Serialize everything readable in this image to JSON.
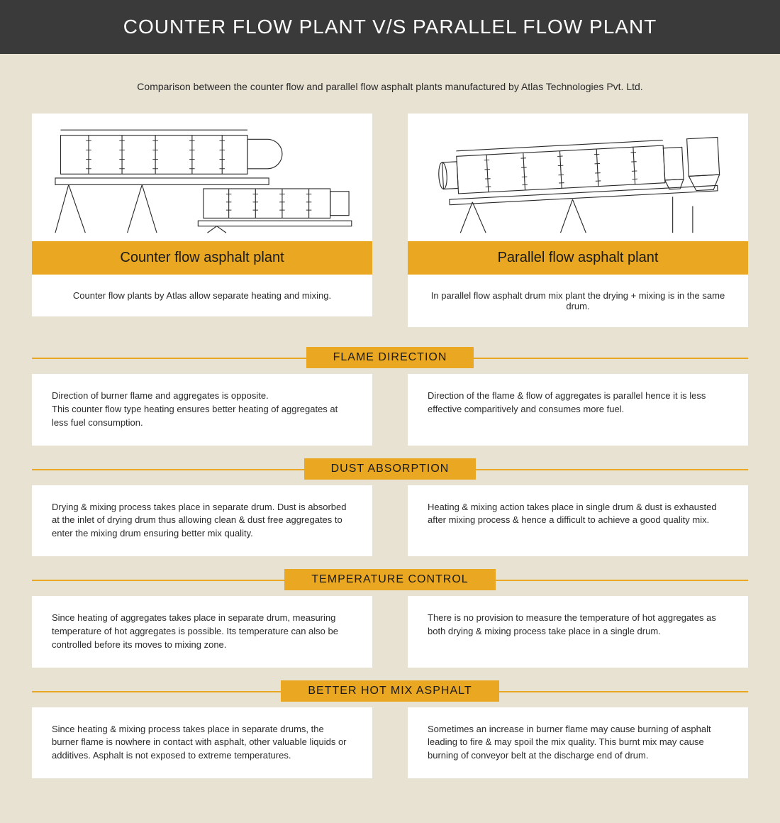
{
  "header_title": "COUNTER FLOW PLANT V/S PARALLEL FLOW PLANT",
  "subtitle": "Comparison between the counter flow and parallel flow asphalt plants manufactured by Atlas Technologies Pvt. Ltd.",
  "colors": {
    "header_bg": "#3a3a3a",
    "header_text": "#ffffff",
    "page_bg": "#e8e2d3",
    "accent": "#eaa822",
    "card_bg": "#ffffff",
    "text": "#2a2a2a"
  },
  "plants": {
    "left": {
      "title": "Counter flow asphalt plant",
      "desc": "Counter flow plants by Atlas allow separate heating and mixing."
    },
    "right": {
      "title": "Parallel flow asphalt plant",
      "desc": "In parallel flow asphalt drum mix plant the drying + mixing is in the same drum."
    }
  },
  "sections": [
    {
      "label": "FLAME DIRECTION",
      "left": "Direction of burner flame and aggregates is opposite.\nThis counter flow type heating ensures better heating of aggregates at less fuel consumption.",
      "right": "Direction of the flame & flow of aggregates is parallel hence it is less effective comparitively and consumes more fuel."
    },
    {
      "label": "DUST ABSORPTION",
      "left": "Drying & mixing process takes place in separate drum. Dust is absorbed at the inlet of drying drum thus allowing clean & dust free aggregates to enter the mixing drum ensuring better mix quality.",
      "right": "Heating & mixing action takes place in single drum & dust is exhausted after mixing process & hence a difficult to achieve a good quality mix."
    },
    {
      "label": "TEMPERATURE CONTROL",
      "left": "Since heating of aggregates takes place in separate drum, measuring temperature of hot aggregates is possible. Its temperature can also be controlled before its moves to mixing zone.",
      "right": "There is no provision to measure the temperature of hot aggregates as both drying & mixing process take place in a single drum."
    },
    {
      "label": "BETTER HOT MIX ASPHALT",
      "left": "Since heating & mixing process takes place in separate drums, the burner flame is nowhere in contact with asphalt, other valuable liquids or additives. Asphalt is not exposed to extreme temperatures.",
      "right": "Sometimes an increase in burner flame may cause burning of asphalt leading to fire & may spoil the mix quality. This burnt mix may cause burning of conveyor belt at the discharge end of drum."
    }
  ]
}
